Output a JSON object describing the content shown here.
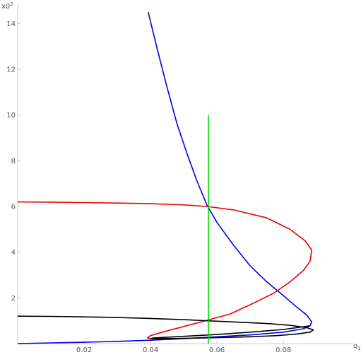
{
  "chart_data": {
    "type": "line",
    "title": "",
    "xlabel": "q",
    "xlabel_subscript": "1",
    "ylabel": "x0",
    "ylabel_superscript": "2",
    "xlim": [
      0,
      0.101
    ],
    "ylim": [
      0,
      14.6
    ],
    "x_ticks": [
      {
        "value": 0.02,
        "label": "0.02"
      },
      {
        "value": 0.04,
        "label": "0.04"
      },
      {
        "value": 0.06,
        "label": "0.06"
      },
      {
        "value": 0.08,
        "label": "0.08"
      }
    ],
    "y_ticks": [
      {
        "value": 2,
        "label": "2"
      },
      {
        "value": 4,
        "label": "4"
      },
      {
        "value": 6,
        "label": "6"
      },
      {
        "value": 8,
        "label": "8"
      },
      {
        "value": 10,
        "label": "10"
      },
      {
        "value": 12,
        "label": "12"
      },
      {
        "value": 14,
        "label": "14"
      }
    ],
    "grid": false,
    "legend": "none",
    "series": [
      {
        "color": "#0000ee",
        "points": [
          [
            0.0393,
            14.5
          ],
          [
            0.042,
            12.9
          ],
          [
            0.045,
            11.2
          ],
          [
            0.048,
            9.6
          ],
          [
            0.051,
            8.3
          ],
          [
            0.054,
            7.1
          ],
          [
            0.057,
            6.05
          ],
          [
            0.06,
            5.3
          ],
          [
            0.065,
            4.3
          ],
          [
            0.07,
            3.4
          ],
          [
            0.075,
            2.7
          ],
          [
            0.08,
            2.1
          ],
          [
            0.084,
            1.6
          ],
          [
            0.087,
            1.25
          ],
          [
            0.0885,
            0.95
          ],
          [
            0.088,
            0.78
          ],
          [
            0.086,
            0.65
          ],
          [
            0.08,
            0.5
          ],
          [
            0.07,
            0.38
          ],
          [
            0.06,
            0.3
          ],
          [
            0.05,
            0.22
          ],
          [
            0.04,
            0.15
          ],
          [
            0.03,
            0.1
          ],
          [
            0.02,
            0.06
          ],
          [
            0.01,
            0.03
          ],
          [
            0.0,
            0.0
          ]
        ]
      },
      {
        "color": "#ee0000",
        "points": [
          [
            0.0,
            6.2
          ],
          [
            0.01,
            6.19
          ],
          [
            0.02,
            6.17
          ],
          [
            0.03,
            6.15
          ],
          [
            0.04,
            6.12
          ],
          [
            0.05,
            6.07
          ],
          [
            0.057,
            6.0
          ],
          [
            0.065,
            5.85
          ],
          [
            0.075,
            5.5
          ],
          [
            0.082,
            5.0
          ],
          [
            0.0865,
            4.5
          ],
          [
            0.0885,
            4.1
          ],
          [
            0.088,
            3.6
          ],
          [
            0.086,
            3.2
          ],
          [
            0.082,
            2.7
          ],
          [
            0.077,
            2.2
          ],
          [
            0.07,
            1.7
          ],
          [
            0.064,
            1.3
          ],
          [
            0.057,
            1.02
          ],
          [
            0.05,
            0.75
          ],
          [
            0.044,
            0.52
          ],
          [
            0.04,
            0.35
          ],
          [
            0.039,
            0.25
          ],
          [
            0.04,
            0.22
          ],
          [
            0.045,
            0.2
          ]
        ]
      },
      {
        "color": "#000000",
        "points": [
          [
            0.0,
            1.2
          ],
          [
            0.01,
            1.19
          ],
          [
            0.02,
            1.17
          ],
          [
            0.03,
            1.14
          ],
          [
            0.04,
            1.1
          ],
          [
            0.05,
            1.05
          ],
          [
            0.057,
            1.0
          ],
          [
            0.065,
            0.95
          ],
          [
            0.075,
            0.88
          ],
          [
            0.082,
            0.8
          ],
          [
            0.087,
            0.7
          ],
          [
            0.089,
            0.6
          ],
          [
            0.088,
            0.5
          ],
          [
            0.084,
            0.42
          ],
          [
            0.078,
            0.35
          ],
          [
            0.07,
            0.3
          ],
          [
            0.06,
            0.26
          ],
          [
            0.05,
            0.23
          ],
          [
            0.043,
            0.22
          ],
          [
            0.04,
            0.22
          ],
          [
            0.041,
            0.25
          ],
          [
            0.045,
            0.28
          ],
          [
            0.05,
            0.32
          ],
          [
            0.06,
            0.4
          ],
          [
            0.07,
            0.5
          ],
          [
            0.08,
            0.62
          ],
          [
            0.088,
            0.78
          ]
        ]
      },
      {
        "color": "#00dd00",
        "points": [
          [
            0.0574,
            0.0
          ],
          [
            0.0574,
            10.0
          ]
        ]
      }
    ]
  }
}
